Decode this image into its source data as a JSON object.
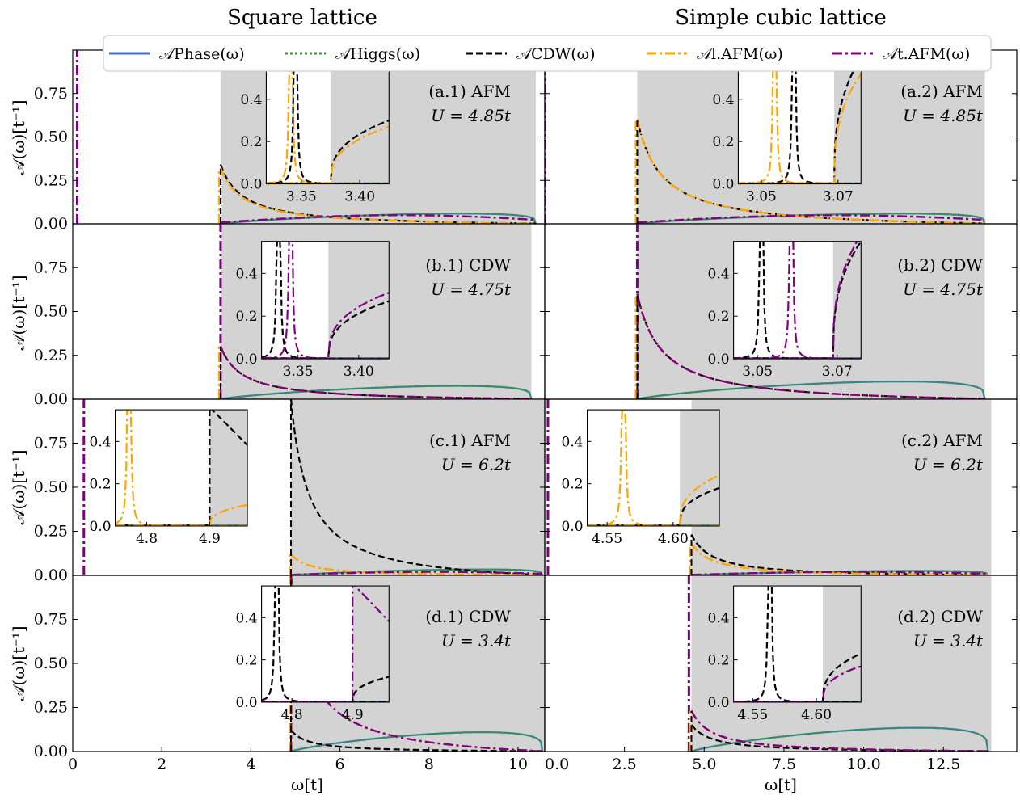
{
  "colors": {
    "phase": "#4472c4",
    "higgs": "#2ca02c",
    "cdw": "#000000",
    "lafm": "#ffa500",
    "tafm": "#800080",
    "continuum": "#d3d3d3"
  },
  "legend": [
    {
      "key": "phase",
      "label": "𝒜Phase(ω)",
      "dash": "solid"
    },
    {
      "key": "higgs",
      "label": "𝒜Higgs(ω)",
      "dash": "dotted"
    },
    {
      "key": "cdw",
      "label": "𝒜CDW(ω)",
      "dash": "dashed"
    },
    {
      "key": "lafm",
      "label": "𝒜l.AFM(ω)",
      "dash": "dashdot"
    },
    {
      "key": "tafm",
      "label": "𝒜t.AFM(ω)",
      "dash": "dashdot"
    }
  ],
  "column_titles": [
    "Square lattice",
    "Simple cubic lattice"
  ],
  "xlabel": "ω[t]",
  "ylabel": "𝒜(ω)[t⁻¹]",
  "chart_data": [
    {
      "type": "line",
      "panel": "(a.1) AFM",
      "u_label": "U = 4.85t",
      "xlim": [
        0,
        10.6
      ],
      "ylim": [
        0,
        1.0
      ],
      "yticks": [
        "0.00",
        "0.25",
        "0.50",
        "0.75"
      ],
      "xticks": [],
      "shade": [
        3.32,
        10.4
      ],
      "continuum_edge": 3.32,
      "continuum_end": 10.4,
      "band_peak": 0.07,
      "cdw_peak": 0.34,
      "lafm_peak": 0.32,
      "tafm_level": 0.05,
      "tafm_mode": 0.1,
      "tafm_mode_height": 1.0,
      "series": [
        "phase",
        "higgs",
        "cdw",
        "lafm",
        "tafm"
      ],
      "inset": {
        "xlim": [
          3.32,
          3.425
        ],
        "ylim": [
          0,
          0.55
        ],
        "shade_from": 3.375,
        "xticks": [
          3.35,
          3.4
        ],
        "xtick_labels": [
          "3.35",
          "3.40"
        ],
        "yticks": [
          "0.0",
          "0.2",
          "0.4"
        ],
        "peaks": [
          {
            "key": "lafm",
            "x": 3.341
          },
          {
            "key": "cdw",
            "x": 3.345
          }
        ],
        "edge": 3.375,
        "levels": {
          "cdw": 0.3,
          "lafm": 0.27
        }
      }
    },
    {
      "type": "line",
      "panel": "(a.2) AFM",
      "u_label": "U = 4.85t",
      "xlim": [
        0,
        14.8
      ],
      "ylim": [
        0,
        1.0
      ],
      "yticks": [],
      "xticks": [],
      "shade": [
        2.9,
        13.8
      ],
      "continuum_edge": 2.9,
      "continuum_end": 13.8,
      "band_peak": 0.07,
      "cdw_peak": 0.6,
      "lafm_peak": 0.6,
      "tafm_level": 0.05,
      "tafm_mode": 0.0,
      "tafm_mode_height": 1.0,
      "series": [
        "phase",
        "higgs",
        "cdw",
        "lafm",
        "tafm"
      ],
      "inset": {
        "xlim": [
          3.044,
          3.076
        ],
        "ylim": [
          0,
          0.55
        ],
        "shade_from": 3.069,
        "xticks": [
          3.05,
          3.07
        ],
        "xtick_labels": [
          "3.05",
          "3.07"
        ],
        "yticks": [
          "0.0",
          "0.2",
          "0.4"
        ],
        "peaks": [
          {
            "key": "lafm",
            "x": 3.0535
          },
          {
            "key": "cdw",
            "x": 3.0585
          }
        ],
        "edge": 3.069,
        "levels": {
          "cdw": 0.6,
          "lafm": 0.52
        }
      }
    },
    {
      "type": "line",
      "panel": "(b.1) CDW",
      "u_label": "U = 4.75t",
      "xlim": [
        0,
        10.6
      ],
      "ylim": [
        0,
        1.0
      ],
      "yticks": [
        "0.00",
        "0.25",
        "0.50",
        "0.75"
      ],
      "xticks": [],
      "shade": [
        3.32,
        10.3
      ],
      "continuum_edge": 3.32,
      "continuum_end": 10.3,
      "band_peak": 0.09,
      "cdw_peak": 0.3,
      "lafm_peak": 0.3,
      "tafm_level": 0.3,
      "tafm_mode": 3.32,
      "tafm_mode_height": 1.0,
      "series": [
        "phase",
        "higgs",
        "cdw",
        "lafm",
        "tafm"
      ],
      "inset": {
        "xlim": [
          3.32,
          3.425
        ],
        "ylim": [
          0,
          0.55
        ],
        "shade_from": 3.375,
        "xticks": [
          3.35,
          3.4
        ],
        "xtick_labels": [
          "3.35",
          "3.40"
        ],
        "yticks": [
          "0.0",
          "0.2",
          "0.4"
        ],
        "peaks": [
          {
            "key": "cdw",
            "x": 3.334
          },
          {
            "key": "tafm",
            "x": 3.344
          }
        ],
        "edge": 3.375,
        "levels": {
          "cdw": 0.27,
          "tafm": 0.31
        }
      }
    },
    {
      "type": "line",
      "panel": "(b.2) CDW",
      "u_label": "U = 4.75t",
      "xlim": [
        0,
        14.8
      ],
      "ylim": [
        0,
        1.0
      ],
      "yticks": [],
      "xticks": [],
      "shade": [
        2.9,
        13.8
      ],
      "continuum_edge": 2.9,
      "continuum_end": 13.8,
      "band_peak": 0.12,
      "cdw_peak": 0.6,
      "lafm_peak": 0.6,
      "tafm_level": 0.6,
      "tafm_mode": 2.9,
      "tafm_mode_height": 1.0,
      "series": [
        "phase",
        "higgs",
        "cdw",
        "lafm",
        "tafm"
      ],
      "inset": {
        "xlim": [
          3.044,
          3.076
        ],
        "ylim": [
          0,
          0.55
        ],
        "shade_from": 3.069,
        "xticks": [
          3.05,
          3.07
        ],
        "xtick_labels": [
          "3.05",
          "3.07"
        ],
        "yticks": [
          "0.0",
          "0.2",
          "0.4"
        ],
        "peaks": [
          {
            "key": "cdw",
            "x": 3.051
          },
          {
            "key": "tafm",
            "x": 3.0585
          }
        ],
        "edge": 3.069,
        "levels": {
          "cdw": 0.55,
          "tafm": 0.58
        }
      }
    },
    {
      "type": "line",
      "panel": "(c.1) AFM",
      "u_label": "U = 6.2t",
      "xlim": [
        0,
        10.6
      ],
      "ylim": [
        0,
        1.0
      ],
      "yticks": [
        "0.00",
        "0.25",
        "0.50",
        "0.75"
      ],
      "xticks": [],
      "shade": [
        4.9,
        10.6
      ],
      "continuum_edge": 4.9,
      "continuum_end": 10.55,
      "band_peak": 0.04,
      "cdw_peak": 1.0,
      "lafm_peak": 0.12,
      "tafm_level": 0.02,
      "tafm_mode": 0.25,
      "tafm_mode_height": 1.0,
      "series": [
        "phase",
        "higgs",
        "cdw",
        "lafm",
        "tafm"
      ],
      "inset": {
        "xlim": [
          4.75,
          4.96
        ],
        "ylim": [
          0,
          0.55
        ],
        "shade_from": 4.9,
        "xticks": [
          4.8,
          4.9
        ],
        "xtick_labels": [
          "4.8",
          "4.9"
        ],
        "yticks": [
          "0.0",
          "0.2",
          "0.4"
        ],
        "peaks": [
          {
            "key": "lafm",
            "x": 4.772
          }
        ],
        "edge": 4.9,
        "levels": {
          "cdw": 0.45,
          "lafm": 0.1
        }
      }
    },
    {
      "type": "line",
      "panel": "(c.2) AFM",
      "u_label": "U = 6.2t",
      "xlim": [
        0,
        14.8
      ],
      "ylim": [
        0,
        1.0
      ],
      "yticks": [],
      "xticks": [],
      "shade": [
        4.6,
        14.0
      ],
      "continuum_edge": 4.6,
      "continuum_end": 13.9,
      "band_peak": 0.03,
      "cdw_peak": 0.23,
      "lafm_peak": 0.18,
      "tafm_level": 0.02,
      "tafm_mode": 0.1,
      "tafm_mode_height": 1.0,
      "series": [
        "phase",
        "higgs",
        "cdw",
        "lafm",
        "tafm"
      ],
      "inset": {
        "xlim": [
          4.535,
          4.635
        ],
        "ylim": [
          0,
          0.55
        ],
        "shade_from": 4.605,
        "xticks": [
          4.55,
          4.6
        ],
        "xtick_labels": [
          "4.55",
          "4.60"
        ],
        "yticks": [
          "0.0",
          "0.2",
          "0.4"
        ],
        "peaks": [
          {
            "key": "lafm",
            "x": 4.5625
          }
        ],
        "edge": 4.605,
        "levels": {
          "cdw": 0.18,
          "lafm": 0.24
        }
      }
    },
    {
      "type": "line",
      "panel": "(d.1) CDW",
      "u_label": "U = 3.4t",
      "xlim": [
        0,
        10.6
      ],
      "ylim": [
        0,
        1.0
      ],
      "yticks": [
        "0.00",
        "0.25",
        "0.50",
        "0.75"
      ],
      "xticks": [
        0,
        2,
        4,
        6,
        8,
        10
      ],
      "xtick_labels": [
        "0",
        "2",
        "4",
        "6",
        "8",
        "10"
      ],
      "shade": [
        4.9,
        10.6
      ],
      "continuum_edge": 4.9,
      "continuum_end": 10.55,
      "band_peak": 0.13,
      "cdw_peak": 0.12,
      "lafm_peak": 1.0,
      "tafm_level": 1.0,
      "tafm_mode": 4.9,
      "tafm_mode_height": 1.0,
      "series": [
        "phase",
        "higgs",
        "cdw",
        "lafm",
        "tafm"
      ],
      "inset": {
        "xlim": [
          4.75,
          4.96
        ],
        "ylim": [
          0,
          0.55
        ],
        "shade_from": 4.9,
        "xticks": [
          4.8,
          4.9
        ],
        "xtick_labels": [
          "4.8",
          "4.9"
        ],
        "yticks": [
          "0.0",
          "0.2",
          "0.4"
        ],
        "peaks": [
          {
            "key": "cdw",
            "x": 4.775
          }
        ],
        "edge": 4.9,
        "levels": {
          "cdw": 0.12,
          "tafm": 0.45
        }
      }
    },
    {
      "type": "line",
      "panel": "(d.2) CDW",
      "u_label": "U = 3.4t",
      "xlim": [
        0,
        14.8
      ],
      "ylim": [
        0,
        1.0
      ],
      "yticks": [],
      "xticks": [
        0,
        2.5,
        5,
        7.5,
        10,
        12.5
      ],
      "xtick_labels": [
        "0.0",
        "2.5",
        "5.0",
        "7.5",
        "10.0",
        "12.5"
      ],
      "shade": [
        4.6,
        14.0
      ],
      "continuum_edge": 4.6,
      "continuum_end": 13.9,
      "band_peak": 0.16,
      "cdw_peak": 0.15,
      "lafm_peak": 0.23,
      "tafm_level": 0.23,
      "tafm_mode": 4.52,
      "tafm_mode_height": 1.0,
      "series": [
        "phase",
        "higgs",
        "cdw",
        "lafm",
        "tafm"
      ],
      "inset": {
        "xlim": [
          4.535,
          4.635
        ],
        "ylim": [
          0,
          0.55
        ],
        "shade_from": 4.605,
        "xticks": [
          4.55,
          4.6
        ],
        "xtick_labels": [
          "4.55",
          "4.60"
        ],
        "yticks": [
          "0.0",
          "0.2",
          "0.4"
        ],
        "peaks": [
          {
            "key": "cdw",
            "x": 4.5635
          }
        ],
        "edge": 4.605,
        "levels": {
          "cdw": 0.23,
          "tafm": 0.17
        }
      }
    }
  ]
}
